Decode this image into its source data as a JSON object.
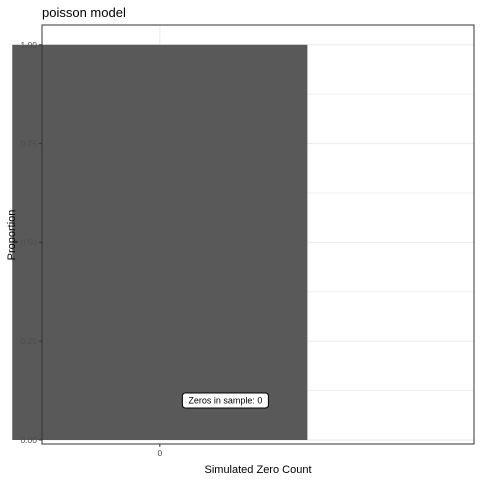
{
  "chart_data": {
    "type": "bar",
    "title": "poisson model",
    "xlabel": "Simulated Zero Count",
    "ylabel": "Proportion",
    "categories": [
      "0"
    ],
    "values": [
      1.0
    ],
    "ylim": [
      0,
      1.05
    ],
    "yticks": [
      0.0,
      0.25,
      0.5,
      0.75,
      1.0
    ],
    "ytick_labels": [
      "0.00",
      "0.25",
      "0.50",
      "0.75",
      "1.00"
    ],
    "grid": true,
    "annotation": {
      "text": "Zeros in sample: 0",
      "x_category": "0",
      "x_offset": 0.2,
      "y": 0.1
    },
    "colors": {
      "bar": "#595959",
      "grid": "#ebebeb",
      "panel_border": "#333333",
      "background": "#ffffff"
    }
  }
}
